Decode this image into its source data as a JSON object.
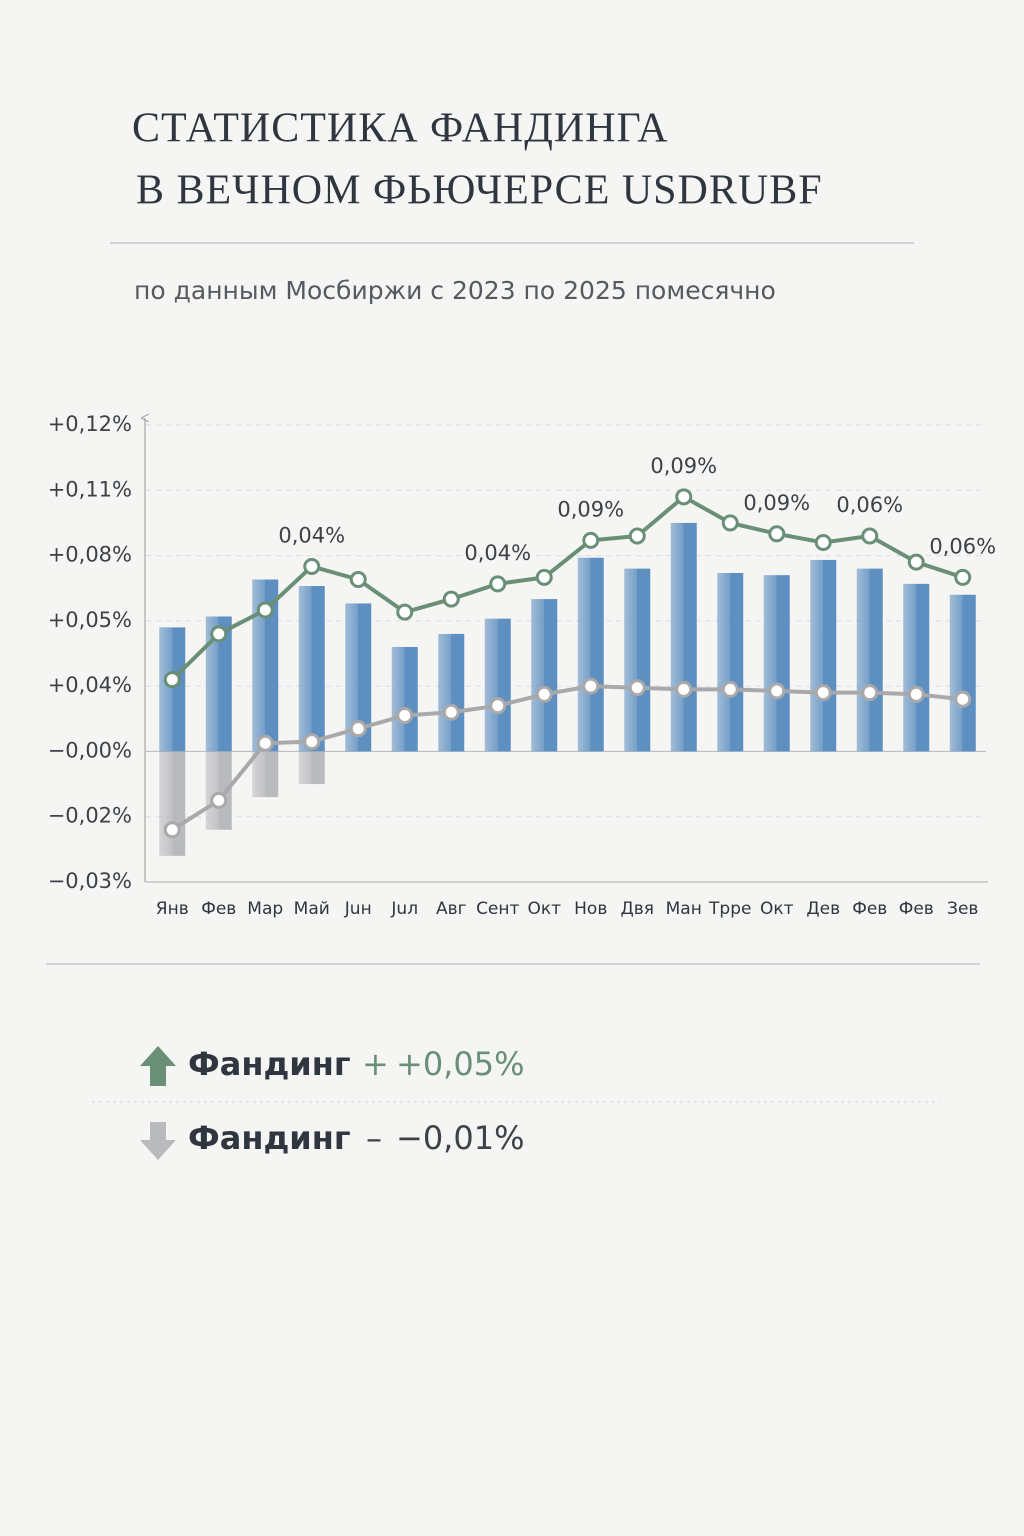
{
  "title_lines": [
    "СТАТИСТИКА ФАНДИНГА",
    "В ВЕЧНОМ ФЬЮЧЕРСЕ USDRUBF"
  ],
  "subtitle": "по данным Мосбиржи с 2023 по 2025 помесячно",
  "chart_data": {
    "type": "bar",
    "categories": [
      "Янв",
      "Фев",
      "Мар",
      "Май",
      "Juн",
      "Juл",
      "Авг",
      "Сент",
      "Окт",
      "Нов",
      "Двя",
      "Ман",
      "Трре",
      "Окт",
      "Дев",
      "Фев",
      "Фев",
      "Зев"
    ],
    "series": [
      {
        "type": "bar",
        "color": "#5d8fc0",
        "values": [
          0.049,
          0.052,
          0.069,
          0.066,
          0.058,
          0.046,
          0.048,
          0.051,
          0.06,
          0.079,
          0.074,
          0.095,
          0.072,
          0.071,
          0.078,
          0.074,
          0.067,
          0.062
        ]
      },
      {
        "type": "bar",
        "color": "#b9babd",
        "values": [
          -0.026,
          -0.022,
          -0.014,
          -0.01,
          null,
          null,
          null,
          null,
          null,
          null,
          null,
          null,
          null,
          null,
          null,
          null,
          null,
          null
        ]
      },
      {
        "type": "line",
        "color": "#6a8f77",
        "values": [
          0.041,
          0.048,
          0.055,
          0.075,
          0.069,
          0.054,
          0.06,
          0.067,
          0.07,
          0.087,
          0.089,
          0.107,
          0.095,
          0.09,
          0.086,
          0.089,
          0.077,
          0.07
        ]
      },
      {
        "type": "line",
        "color": "#a9a9ab",
        "values": [
          -0.022,
          -0.015,
          0.005,
          0.006,
          0.014,
          0.022,
          0.024,
          0.028,
          0.035,
          0.04,
          0.039,
          0.038,
          0.038,
          0.037,
          0.036,
          0.036,
          0.035,
          0.032
        ]
      }
    ],
    "annotations": [
      {
        "index": 3,
        "text": "0,04%"
      },
      {
        "index": 7,
        "text": "0,04%"
      },
      {
        "index": 9,
        "text": "0,09%"
      },
      {
        "index": 11,
        "text": "0,09%"
      },
      {
        "index": 13,
        "text": "0,09%"
      },
      {
        "index": 15,
        "text": "0,06%"
      },
      {
        "index": 17,
        "text": "0,06%"
      }
    ],
    "ylim": [
      0.12,
      -0.03
    ],
    "yticks": [
      {
        "value": 0.12,
        "label": "+0,12%"
      },
      {
        "value": 0.11,
        "label": "+0,11%"
      },
      {
        "value": 0.08,
        "label": "+0,08%"
      },
      {
        "value": 0.05,
        "label": "+0,05%"
      },
      {
        "value": 0.04,
        "label": "+0,04%"
      },
      {
        "value": 0,
        "label": "−0,00%"
      },
      {
        "value": -0.02,
        "label": "−0,02%"
      },
      {
        "value": -0.03,
        "label": "−0,03%"
      }
    ],
    "grid": true
  },
  "summary": [
    {
      "label": "Фандинг",
      "sign": "+",
      "value": "+0,05%"
    },
    {
      "label": "Фандинг",
      "sign": "–",
      "value": "−0,01%"
    }
  ]
}
